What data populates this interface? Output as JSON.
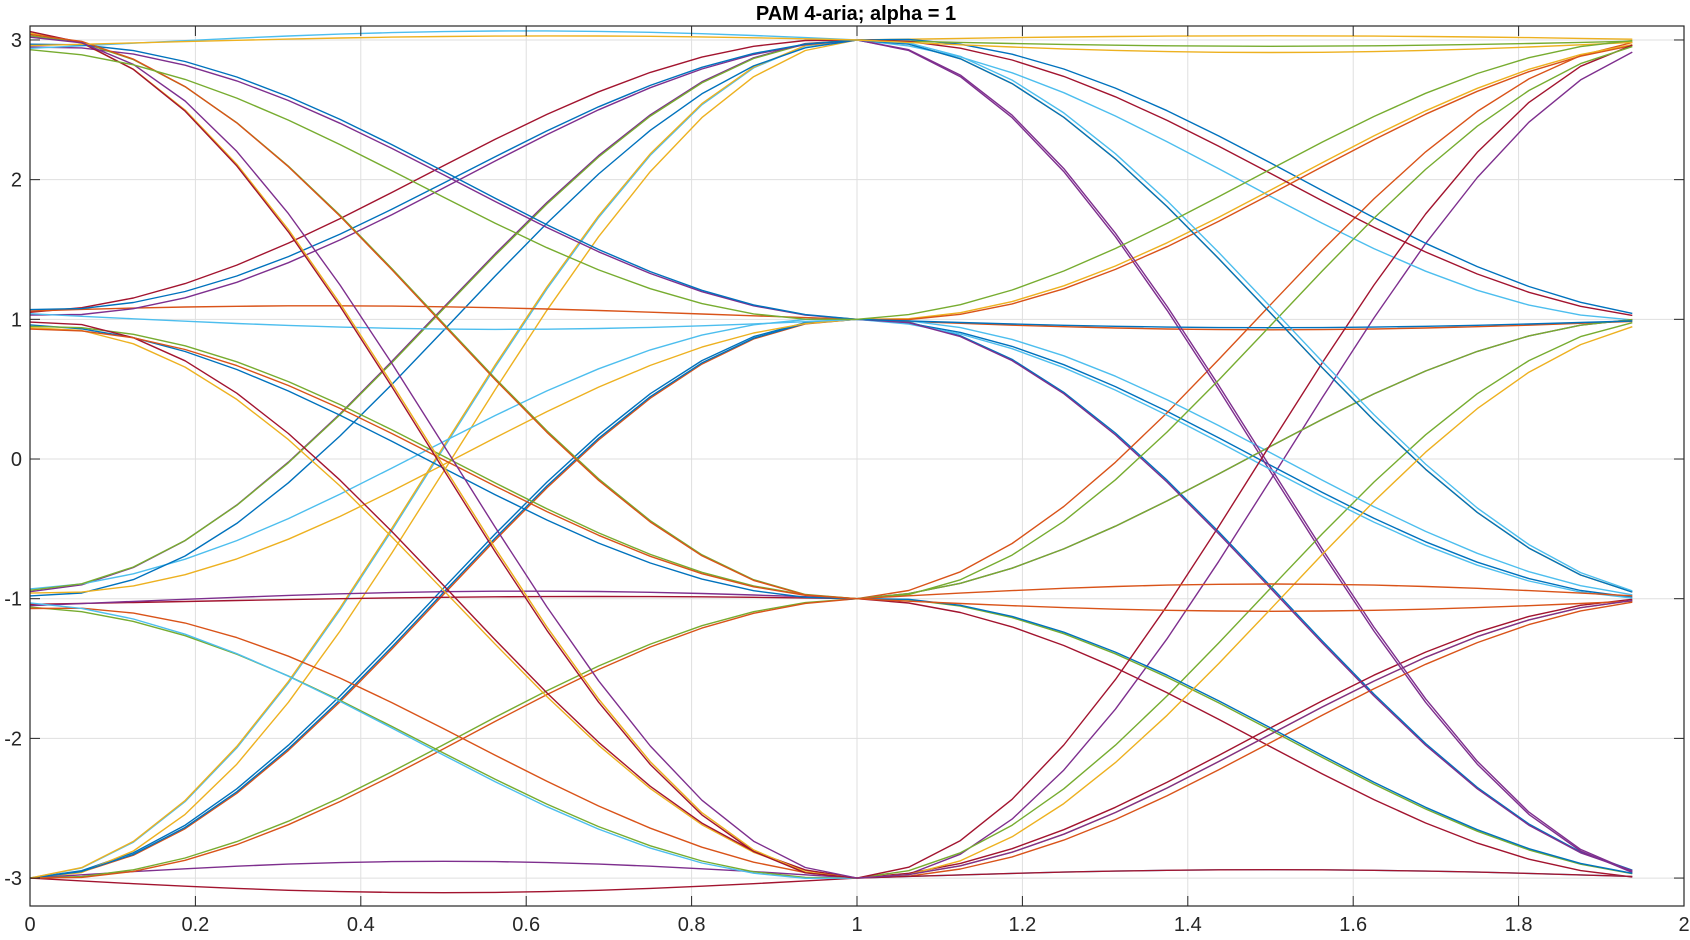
{
  "chart_data": {
    "type": "line",
    "title": "PAM 4-aria; alpha = 1",
    "xlabel": "",
    "ylabel": "",
    "xlim": [
      0,
      2
    ],
    "ylim": [
      -3.2,
      3.1
    ],
    "xticks": [
      0,
      0.2,
      0.4,
      0.6,
      0.8,
      1,
      1.2,
      1.4,
      1.6,
      1.8,
      2
    ],
    "xtick_labels": [
      "0",
      "0.2",
      "0.4",
      "0.6",
      "0.8",
      "1",
      "1.2",
      "1.4",
      "1.6",
      "1.8",
      "2"
    ],
    "yticks": [
      -3,
      -2,
      -1,
      0,
      1,
      2,
      3
    ],
    "ytick_labels": [
      "-3",
      "-2",
      "-1",
      "0",
      "1",
      "2",
      "3"
    ],
    "grid": true,
    "x_end": 1.9375,
    "colors": [
      "#0072BD",
      "#D95319",
      "#EDB120",
      "#7E2F8E",
      "#77AC30",
      "#4DBEEE",
      "#A2142F"
    ],
    "series": [
      {
        "a": -3,
        "b": 1,
        "c": -3,
        "e_start": 0,
        "e_mid": 0.05,
        "e_end": 0.06
      },
      {
        "a": -3,
        "b": 1,
        "c": 1,
        "e_start": 0,
        "e_mid": 0.02,
        "e_end": -0.05
      },
      {
        "a": -3,
        "b": 3,
        "c": -1,
        "e_start": 0,
        "e_mid": -0.06,
        "e_end": 0.03
      },
      {
        "a": -3,
        "b": -3,
        "c": 3,
        "e_start": 0,
        "e_mid": 0.08,
        "e_end": -0.1
      },
      {
        "a": -3,
        "b": -1,
        "c": -3,
        "e_start": 0,
        "e_mid": -0.03,
        "e_end": 0.04
      },
      {
        "a": -3,
        "b": 3,
        "c": 1,
        "e_start": 0,
        "e_mid": 0.05,
        "e_end": -0.08
      },
      {
        "a": -3,
        "b": -3,
        "c": -1,
        "e_start": 0,
        "e_mid": -0.07,
        "e_end": 0.05
      },
      {
        "a": -3,
        "b": 1,
        "c": -1,
        "e_start": 0,
        "e_mid": 0.03,
        "e_end": -0.03
      },
      {
        "a": -3,
        "b": -1,
        "c": 3,
        "e_start": 0,
        "e_mid": -0.05,
        "e_end": 0.07
      },
      {
        "a": -3,
        "b": 3,
        "c": 3,
        "e_start": 0,
        "e_mid": 0.06,
        "e_end": 0.02
      },
      {
        "a": -1,
        "b": 3,
        "c": -3,
        "e_start": 0.05,
        "e_mid": 0.04,
        "e_end": -0.06
      },
      {
        "a": -1,
        "b": -3,
        "c": 1,
        "e_start": -0.06,
        "e_mid": -0.05,
        "e_end": 0.05
      },
      {
        "a": -1,
        "b": 1,
        "c": -1,
        "e_start": 0.07,
        "e_mid": 0.06,
        "e_end": 0.03
      },
      {
        "a": -1,
        "b": -1,
        "c": -3,
        "e_start": -0.04,
        "e_mid": 0.02,
        "e_end": -0.04
      },
      {
        "a": -1,
        "b": 3,
        "c": 1,
        "e_start": 0.02,
        "e_mid": -0.06,
        "e_end": 0.08
      },
      {
        "a": -1,
        "b": -3,
        "c": -1,
        "e_start": -0.07,
        "e_mid": 0.07,
        "e_end": -0.02
      },
      {
        "a": -1,
        "b": 1,
        "c": 3,
        "e_start": 0.04,
        "e_mid": -0.04,
        "e_end": -0.05
      },
      {
        "a": -1,
        "b": -1,
        "c": 1,
        "e_start": -0.05,
        "e_mid": 0.05,
        "e_end": 0.06
      },
      {
        "a": -1,
        "b": 3,
        "c": 3,
        "e_start": 0.06,
        "e_mid": 0.03,
        "e_end": -0.03
      },
      {
        "a": -1,
        "b": -3,
        "c": -3,
        "e_start": -0.03,
        "e_mid": -0.07,
        "e_end": 0.04
      },
      {
        "a": 1,
        "b": 3,
        "c": 1,
        "e_start": 0.05,
        "e_mid": 0.05,
        "e_end": 0.03
      },
      {
        "a": 1,
        "b": -1,
        "c": -3,
        "e_start": -0.04,
        "e_mid": -0.03,
        "e_end": 0.05
      },
      {
        "a": 1,
        "b": 1,
        "c": 3,
        "e_start": 0.06,
        "e_mid": 0.04,
        "e_end": -0.07
      },
      {
        "a": 1,
        "b": -3,
        "c": -1,
        "e_start": -0.06,
        "e_mid": 0.06,
        "e_end": 0.02
      },
      {
        "a": 1,
        "b": 3,
        "c": -3,
        "e_start": 0.03,
        "e_mid": -0.05,
        "e_end": -0.04
      },
      {
        "a": 1,
        "b": -1,
        "c": 1,
        "e_start": -0.05,
        "e_mid": 0.03,
        "e_end": 0.06
      },
      {
        "a": 1,
        "b": 1,
        "c": -1,
        "e_start": 0.04,
        "e_mid": -0.06,
        "e_end": -0.05
      },
      {
        "a": 1,
        "b": -3,
        "c": 3,
        "e_start": -0.02,
        "e_mid": 0.07,
        "e_end": 0.07
      },
      {
        "a": 1,
        "b": 3,
        "c": -1,
        "e_start": 0.07,
        "e_mid": -0.04,
        "e_end": 0.03
      },
      {
        "a": 1,
        "b": -1,
        "c": -1,
        "e_start": -0.07,
        "e_mid": 0.02,
        "e_end": -0.06
      },
      {
        "a": 3,
        "b": -3,
        "c": 1,
        "e_start": 0.05,
        "e_mid": -0.05,
        "e_end": -0.05
      },
      {
        "a": 3,
        "b": 1,
        "c": -3,
        "e_start": -0.05,
        "e_mid": 0.04,
        "e_end": 0.05
      },
      {
        "a": 3,
        "b": -1,
        "c": 3,
        "e_start": 0.03,
        "e_mid": -0.03,
        "e_end": -0.03
      },
      {
        "a": 3,
        "b": 3,
        "c": -1,
        "e_start": -0.06,
        "e_mid": 0.06,
        "e_end": 0.06
      },
      {
        "a": 3,
        "b": -3,
        "c": -3,
        "e_start": 0.06,
        "e_mid": -0.07,
        "e_end": 0.04
      },
      {
        "a": 3,
        "b": 1,
        "c": 1,
        "e_start": -0.03,
        "e_mid": 0.05,
        "e_end": -0.04
      },
      {
        "a": 3,
        "b": -1,
        "c": -1,
        "e_start": 0.04,
        "e_mid": -0.04,
        "e_end": 0.07
      },
      {
        "a": 3,
        "b": 3,
        "c": 3,
        "e_start": -0.04,
        "e_mid": 0.03,
        "e_end": -0.06
      },
      {
        "a": 3,
        "b": -3,
        "c": -1,
        "e_start": 0.02,
        "e_mid": 0.06,
        "e_end": 0.02
      },
      {
        "a": 3,
        "b": 1,
        "c": 3,
        "e_start": -0.07,
        "e_mid": -0.06,
        "e_end": 0.05
      }
    ]
  }
}
